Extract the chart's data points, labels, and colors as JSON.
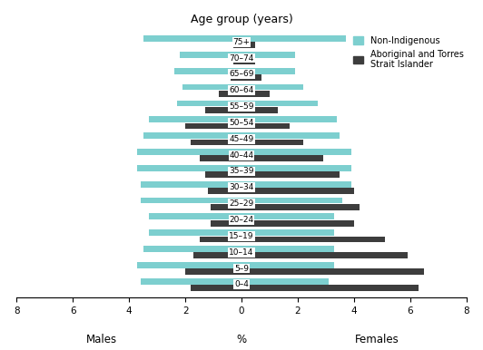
{
  "age_groups": [
    "0–4",
    "5–9",
    "10–14",
    "15–19",
    "20–24",
    "25–29",
    "30–34",
    "35–39",
    "40–44",
    "45–49",
    "50–54",
    "55–59",
    "60–64",
    "65–69",
    "70–74",
    "75+"
  ],
  "male_nonindigenous": [
    3.6,
    3.7,
    3.5,
    3.3,
    3.3,
    3.6,
    3.6,
    3.7,
    3.7,
    3.5,
    3.3,
    2.3,
    2.1,
    2.4,
    2.2,
    3.5
  ],
  "male_indigenous": [
    1.8,
    2.0,
    1.7,
    1.5,
    1.1,
    1.1,
    1.2,
    1.3,
    1.5,
    1.8,
    2.0,
    1.3,
    0.8,
    0.4,
    0.3,
    0.3
  ],
  "female_nonindigenous": [
    3.1,
    3.3,
    3.3,
    3.3,
    3.3,
    3.6,
    3.9,
    3.9,
    3.9,
    3.5,
    3.4,
    2.7,
    2.2,
    1.9,
    1.9,
    3.7
  ],
  "female_indigenous": [
    6.3,
    6.5,
    5.9,
    5.1,
    4.0,
    4.2,
    4.0,
    3.5,
    2.9,
    2.2,
    1.7,
    1.3,
    1.0,
    0.7,
    0.5,
    0.5
  ],
  "color_nonindigenous": "#7dcfcf",
  "color_indigenous": "#3d3d3d",
  "title": "Age group (years)",
  "xlabel_left": "Males",
  "xlabel_right": "Females",
  "xlabel_center": "%",
  "legend_nonindigenous": "Non-Indigenous",
  "legend_indigenous": "Aboriginal and Torres\nStrait Islander",
  "xlim": 8,
  "xtick_vals": [
    -8,
    -6,
    -4,
    -2,
    0,
    2,
    4,
    6,
    8
  ],
  "background": "#ffffff"
}
